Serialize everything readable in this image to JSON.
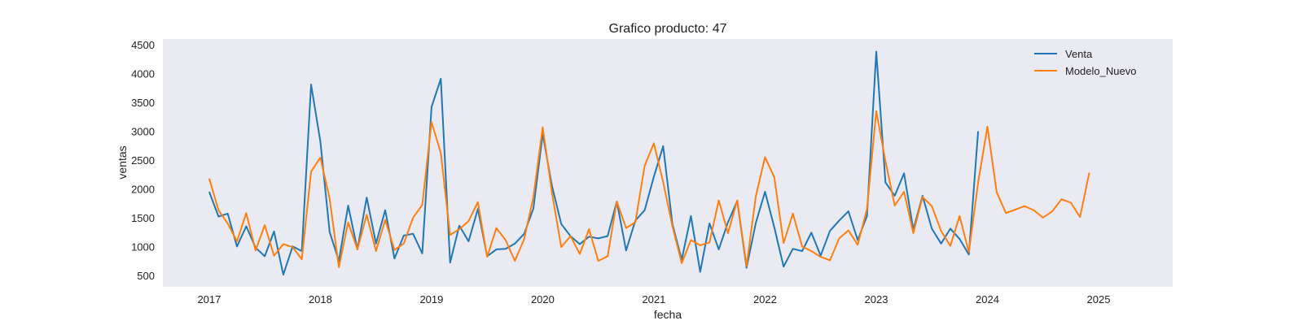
{
  "chart_data": {
    "type": "line",
    "title": "Grafico producto: 47",
    "xlabel": "fecha",
    "ylabel": "ventas",
    "x_ticks": [
      "2017",
      "2018",
      "2019",
      "2020",
      "2021",
      "2022",
      "2023",
      "2024",
      "2025"
    ],
    "y_ticks": [
      500,
      1000,
      1500,
      2000,
      2500,
      3000,
      3500,
      4000,
      4500
    ],
    "xlim": [
      "2016-08-01",
      "2025-09-01"
    ],
    "ylim": [
      300,
      4600
    ],
    "grid": false,
    "legend_position": "top-right",
    "series": [
      {
        "name": "Venta",
        "color": "#1f77b4",
        "start": "2017-01",
        "values": [
          1950,
          1520,
          1570,
          1000,
          1350,
          980,
          830,
          1260,
          510,
          1000,
          920,
          3810,
          2820,
          1250,
          750,
          1710,
          950,
          1850,
          1050,
          1630,
          790,
          1190,
          1220,
          880,
          3420,
          3910,
          720,
          1360,
          1090,
          1650,
          830,
          950,
          960,
          1050,
          1220,
          1660,
          2950,
          2050,
          1390,
          1180,
          1040,
          1170,
          1140,
          1180,
          1780,
          930,
          1450,
          1630,
          2210,
          2740,
          1390,
          770,
          1530,
          560,
          1400,
          950,
          1420,
          1790,
          630,
          1410,
          1950,
          1330,
          650,
          960,
          920,
          1240,
          840,
          1270,
          1450,
          1610,
          1110,
          1530,
          4380,
          2110,
          1880,
          2270,
          1290,
          1880,
          1310,
          1050,
          1310,
          1130,
          860,
          3000
        ]
      },
      {
        "name": "Modelo_Nuevo",
        "color": "#ff7f0e",
        "start": "2017-01",
        "values": [
          2180,
          1630,
          1400,
          1090,
          1580,
          930,
          1370,
          840,
          1040,
          990,
          780,
          2300,
          2540,
          1830,
          640,
          1420,
          950,
          1550,
          920,
          1460,
          940,
          1050,
          1500,
          1720,
          3160,
          2620,
          1200,
          1300,
          1440,
          1770,
          820,
          1320,
          1110,
          750,
          1130,
          1860,
          3070,
          1930,
          990,
          1180,
          870,
          1300,
          750,
          830,
          1780,
          1320,
          1420,
          2400,
          2790,
          2120,
          1350,
          710,
          1110,
          1020,
          1070,
          1800,
          1230,
          1800,
          660,
          1870,
          2550,
          2200,
          1060,
          1570,
          1000,
          920,
          820,
          760,
          1140,
          1280,
          1030,
          1650,
          3350,
          2480,
          1710,
          1950,
          1230,
          1860,
          1700,
          1270,
          1010,
          1530,
          900,
          2110,
          3080,
          1940,
          1580,
          1640,
          1700,
          1630,
          1500,
          1610,
          1820,
          1760,
          1510,
          2280
        ]
      }
    ]
  }
}
